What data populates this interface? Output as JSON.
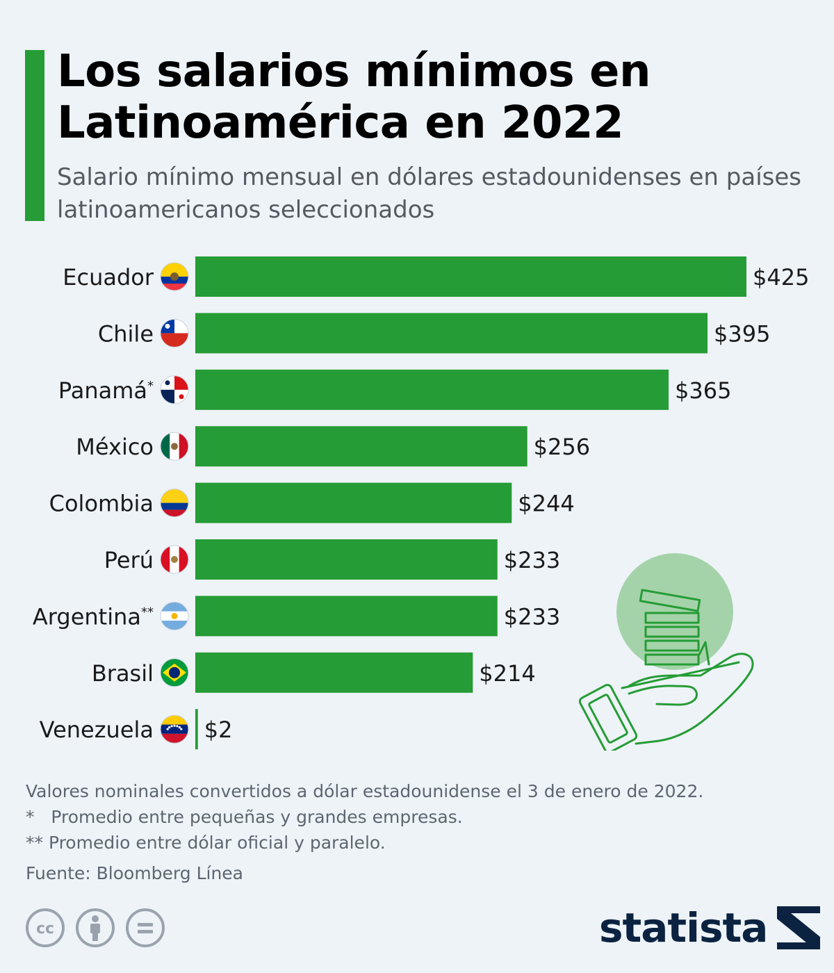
{
  "header": {
    "title": "Los salarios mínimos en Latinoamérica en 2022",
    "subtitle": "Salario mínimo mensual en dólares estadounidenses en países latinoamericanos seleccionados"
  },
  "chart_data": {
    "type": "bar",
    "orientation": "horizontal",
    "title": "Los salarios mínimos en Latinoamérica en 2022",
    "subtitle": "Salario mínimo mensual en dólares estadounidenses en países latinoamericanos seleccionados",
    "categories": [
      "Ecuador",
      "Chile",
      "Panamá",
      "México",
      "Colombia",
      "Perú",
      "Argentina",
      "Brasil",
      "Venezuela"
    ],
    "category_markers": [
      "",
      "",
      "*",
      "",
      "",
      "",
      "**",
      "",
      ""
    ],
    "values": [
      425,
      395,
      365,
      256,
      244,
      233,
      233,
      214,
      2
    ],
    "value_labels": [
      "$425",
      "$395",
      "$365",
      "$256",
      "$244",
      "$233",
      "$233",
      "$214",
      "$2"
    ],
    "flags": [
      "ecuador-flag",
      "chile-flag",
      "panama-flag",
      "mexico-flag",
      "colombia-flag",
      "peru-flag",
      "argentina-flag",
      "brazil-flag",
      "venezuela-flag"
    ],
    "xlim": [
      0,
      425
    ],
    "bar_color": "#259c35",
    "grid": false,
    "legend": "none"
  },
  "footnotes": {
    "note1": "Valores nominales convertidos a dólar estadounidense el 3 de enero de 2022.",
    "note2": "*   Promedio entre pequeñas y grandes empresas.",
    "note3": "** Promedio entre dólar oficial y paralelo.",
    "source": "Fuente: Bloomberg Línea"
  },
  "branding": {
    "logo_text": "statista",
    "license_icons": [
      "cc-icon",
      "attribution-icon",
      "no-derivatives-icon"
    ]
  },
  "colors": {
    "accent": "#259c35",
    "background": "#eef3f8",
    "logo": "#0b2341"
  }
}
